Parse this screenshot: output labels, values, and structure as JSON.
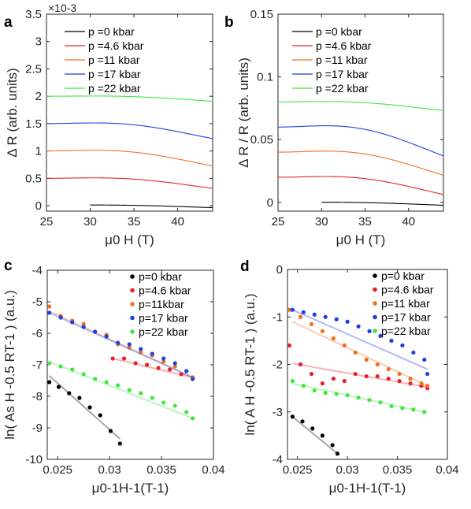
{
  "colors": {
    "p0": "#000000",
    "p4_6": "#e8202a",
    "p11": "#f36f21",
    "p17": "#1f3fe6",
    "p22": "#3fe83f"
  },
  "chart_data": [
    {
      "panel": "a",
      "type": "line",
      "xlabel": "μ0 H (T)",
      "ylabel": "Δ R (arb. units)",
      "xlim": [
        25,
        44
      ],
      "ylim": [
        -0.0001,
        0.0035
      ],
      "exponent_label": "×10-3",
      "xticks": [
        25,
        30,
        35,
        40
      ],
      "yticks": [
        0,
        0.0005,
        0.001,
        0.0015,
        0.002,
        0.0025,
        0.003,
        0.0035
      ],
      "yticklabels": [
        "0",
        "0.5",
        "1",
        "1.5",
        "2",
        "2.5",
        "3",
        "3.5"
      ],
      "grid": false,
      "legend_position": "top-right",
      "series": [
        {
          "name": "p =0 kbar",
          "color_key": "p0",
          "x_start": 30,
          "x_end": 44,
          "offset": 1e-05,
          "amplitude": 1e-05,
          "freq": 0.03
        },
        {
          "name": "p =4.6 kbar",
          "color_key": "p4_6",
          "x_start": 25,
          "x_end": 44,
          "offset": 0.0005,
          "amplitude": 4e-05,
          "freq": 0.03
        },
        {
          "name": "p =11 kbar",
          "color_key": "p11",
          "x_start": 25,
          "x_end": 44,
          "offset": 0.001,
          "amplitude": 6e-05,
          "freq": 0.03
        },
        {
          "name": "p =17 kbar",
          "color_key": "p17",
          "x_start": 25,
          "x_end": 44,
          "offset": 0.0015,
          "amplitude": 6e-05,
          "freq": 0.03
        },
        {
          "name": "p =22 kbar",
          "color_key": "p22",
          "x_start": 25,
          "x_end": 44,
          "offset": 0.002,
          "amplitude": 2e-05,
          "freq": 0.03
        }
      ]
    },
    {
      "panel": "b",
      "type": "line",
      "xlabel": "μ0 H (T)",
      "ylabel": "Δ R / R (arb. units)",
      "xlim": [
        25,
        44
      ],
      "ylim": [
        -0.007,
        0.15
      ],
      "xticks": [
        25,
        30,
        35,
        40
      ],
      "yticks": [
        0,
        0.05,
        0.1,
        0.15
      ],
      "yticklabels": [
        "0",
        "0.05",
        "0.1",
        "0.15"
      ],
      "grid": false,
      "legend_position": "top-right",
      "series": [
        {
          "name": "p =0 kbar",
          "color_key": "p0",
          "x_start": 30,
          "x_end": 44,
          "offset": 0.0,
          "amplitude": 0.0005,
          "freq": 0.03
        },
        {
          "name": "p =4.6 kbar",
          "color_key": "p4_6",
          "x_start": 25,
          "x_end": 44,
          "offset": 0.02,
          "amplitude": 0.003,
          "freq": 0.03
        },
        {
          "name": "p =11 kbar",
          "color_key": "p11",
          "x_start": 25,
          "x_end": 44,
          "offset": 0.04,
          "amplitude": 0.004,
          "freq": 0.03
        },
        {
          "name": "p =17 kbar",
          "color_key": "p17",
          "x_start": 25,
          "x_end": 44,
          "offset": 0.06,
          "amplitude": 0.005,
          "freq": 0.03
        },
        {
          "name": "p =22 kbar",
          "color_key": "p22",
          "x_start": 25,
          "x_end": 44,
          "offset": 0.08,
          "amplitude": 0.0015,
          "freq": 0.03
        }
      ]
    },
    {
      "panel": "c",
      "type": "scatter",
      "xlabel": "μ0-1H-1(T-1)",
      "ylabel": "ln( As H -0.5 RT-1 ) (a.u.)",
      "xlim": [
        0.024,
        0.04
      ],
      "ylim": [
        -10,
        -4
      ],
      "xticks": [
        0.025,
        0.03,
        0.035,
        0.04
      ],
      "xticklabels": [
        "0.025",
        "0.03",
        "0.035",
        "0.04"
      ],
      "yticks": [
        -10,
        -9,
        -8,
        -7,
        -6,
        -5,
        -4
      ],
      "yticklabels": [
        "-10",
        "-9",
        "-8",
        "-7",
        "-6",
        "-5",
        "-4"
      ],
      "grid": false,
      "legend_position": "top-right",
      "series": [
        {
          "name": "p=0 kbar",
          "color_key": "p0",
          "x": [
            0.0242,
            0.0251,
            0.0261,
            0.0271,
            0.0281,
            0.0291,
            0.0301,
            0.031
          ],
          "y": [
            -7.55,
            -7.7,
            -7.9,
            -8.05,
            -8.35,
            -8.6,
            -9.1,
            -9.5
          ],
          "fit": [
            [
              0.0242,
              -7.35
            ],
            [
              0.031,
              -9.35
            ]
          ]
        },
        {
          "name": "p=4.6 kbar",
          "color_key": "p4_6",
          "x": [
            0.0303,
            0.0314,
            0.0325,
            0.0336,
            0.0347,
            0.0358,
            0.0369,
            0.038
          ],
          "y": [
            -6.8,
            -6.8,
            -6.95,
            -7.0,
            -7.1,
            -7.15,
            -7.3,
            -7.4
          ],
          "fit": [
            [
              0.0303,
              -6.8
            ],
            [
              0.038,
              -7.4
            ]
          ]
        },
        {
          "name": "p=11kbar",
          "color_key": "p11",
          "x": [
            0.0242,
            0.0253,
            0.0264,
            0.0275,
            0.0286,
            0.0297,
            0.0308,
            0.0319,
            0.033,
            0.0341,
            0.0352,
            0.0363,
            0.0374,
            0.038
          ],
          "y": [
            -5.15,
            -5.45,
            -5.6,
            -5.7,
            -5.95,
            -6.05,
            -6.35,
            -6.45,
            -6.6,
            -6.7,
            -6.9,
            -7.05,
            -7.2,
            -7.4
          ],
          "fit": [
            [
              0.0242,
              -5.3
            ],
            [
              0.038,
              -7.4
            ]
          ]
        },
        {
          "name": "p=17 kbar",
          "color_key": "p17",
          "x": [
            0.0242,
            0.0253,
            0.0264,
            0.0275,
            0.0286,
            0.0297,
            0.0308,
            0.0319,
            0.033,
            0.0341,
            0.0352,
            0.0363,
            0.0374,
            0.038
          ],
          "y": [
            -5.35,
            -5.5,
            -5.65,
            -5.8,
            -5.95,
            -6.1,
            -6.3,
            -6.35,
            -6.5,
            -6.65,
            -6.8,
            -6.95,
            -7.2,
            -7.45
          ],
          "fit": [
            [
              0.0242,
              -5.35
            ],
            [
              0.038,
              -7.4
            ]
          ]
        },
        {
          "name": "p=22 kbar",
          "color_key": "p22",
          "x": [
            0.0242,
            0.0253,
            0.0264,
            0.0275,
            0.0286,
            0.0297,
            0.0308,
            0.0319,
            0.033,
            0.0341,
            0.0352,
            0.0363,
            0.0374,
            0.038
          ],
          "y": [
            -6.95,
            -7.05,
            -7.15,
            -7.3,
            -7.45,
            -7.55,
            -7.65,
            -7.8,
            -7.9,
            -8.05,
            -8.2,
            -8.3,
            -8.5,
            -8.7
          ],
          "fit": [
            [
              0.0242,
              -6.9
            ],
            [
              0.038,
              -8.7
            ]
          ]
        }
      ]
    },
    {
      "panel": "d",
      "type": "scatter",
      "xlabel": "μ0-1H-1(T-1)",
      "ylabel": "ln( A H -0.5 RT-1 ) (a.u.)",
      "xlim": [
        0.024,
        0.04
      ],
      "ylim": [
        -4,
        0
      ],
      "xticks": [
        0.025,
        0.03,
        0.035,
        0.04
      ],
      "xticklabels": [
        "0.025",
        "0.03",
        "0.035",
        "0.04"
      ],
      "yticks": [
        -4,
        -3,
        -2,
        -1,
        0
      ],
      "yticklabels": [
        "-4",
        "-3",
        "-2",
        "-1",
        "0"
      ],
      "grid": false,
      "legend_position": "top-right",
      "series": [
        {
          "name": "p=0 kbar",
          "color_key": "p0",
          "x": [
            0.0245,
            0.0255,
            0.0265,
            0.0275,
            0.0285,
            0.029
          ],
          "y": [
            -3.1,
            -3.2,
            -3.35,
            -3.5,
            -3.7,
            -3.88
          ],
          "fit": [
            [
              0.0245,
              -3.1
            ],
            [
              0.029,
              -3.88
            ]
          ]
        },
        {
          "name": "p=4.6 kbar",
          "color_key": "p4_6",
          "x": [
            0.0242,
            0.0253,
            0.0264,
            0.0275,
            0.0286,
            0.0297,
            0.0308,
            0.0319,
            0.033,
            0.0341,
            0.0352,
            0.0363,
            0.0374,
            0.038
          ],
          "y": [
            -1.6,
            -2.0,
            -2.2,
            -2.4,
            -2.3,
            -2.35,
            -2.2,
            -2.25,
            -2.25,
            -2.3,
            -2.35,
            -2.4,
            -2.45,
            -2.5
          ],
          "fit": [
            [
              0.0245,
              -1.98
            ],
            [
              0.038,
              -2.48
            ]
          ]
        },
        {
          "name": "p=11 kbar",
          "color_key": "p11",
          "x": [
            0.0242,
            0.0253,
            0.0264,
            0.0275,
            0.0286,
            0.0297,
            0.0308,
            0.0319,
            0.033,
            0.0341,
            0.0352,
            0.0363,
            0.0374,
            0.038
          ],
          "y": [
            -0.85,
            -1.0,
            -1.15,
            -1.3,
            -1.45,
            -1.6,
            -1.75,
            -1.9,
            -2.0,
            -2.1,
            -2.2,
            -2.3,
            -2.4,
            -2.45
          ],
          "fit": [
            [
              0.0245,
              -1.1
            ],
            [
              0.038,
              -2.45
            ]
          ]
        },
        {
          "name": "p=17 kbar",
          "color_key": "p17",
          "x": [
            0.0245,
            0.0256,
            0.0267,
            0.0278,
            0.0289,
            0.03,
            0.0311,
            0.0322,
            0.0333,
            0.0344,
            0.0355,
            0.0366,
            0.0377,
            0.038
          ],
          "y": [
            -0.85,
            -0.9,
            -0.95,
            -1.0,
            -1.05,
            -1.1,
            -1.2,
            -1.3,
            -1.4,
            -1.5,
            -1.6,
            -1.75,
            -1.9,
            -2.2
          ],
          "fit": [
            [
              0.0245,
              -0.85
            ],
            [
              0.038,
              -2.1
            ]
          ]
        },
        {
          "name": "p=22 kbar",
          "color_key": "p22",
          "x": [
            0.0245,
            0.0256,
            0.0267,
            0.0278,
            0.0289,
            0.03,
            0.0311,
            0.0322,
            0.0333,
            0.0344,
            0.0355,
            0.0366,
            0.0377
          ],
          "y": [
            -2.35,
            -2.45,
            -2.55,
            -2.6,
            -2.62,
            -2.65,
            -2.7,
            -2.75,
            -2.8,
            -2.88,
            -2.92,
            -2.95,
            -3.0
          ],
          "fit": [
            [
              0.0245,
              -2.4
            ],
            [
              0.0377,
              -3.0
            ]
          ]
        }
      ]
    }
  ]
}
